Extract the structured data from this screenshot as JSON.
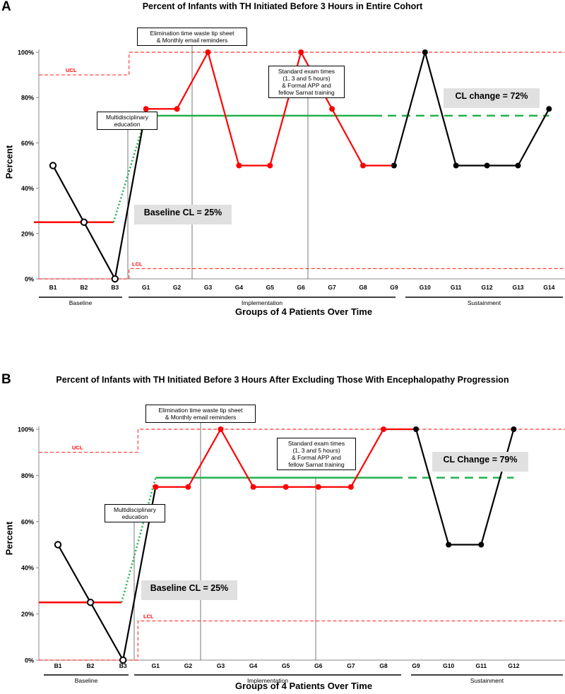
{
  "panels": [
    {
      "label": "A",
      "title": "Percent of Infants with TH Initiated Before 3 Hours in Entire Cohort",
      "ylabel": "Percent",
      "xlabel": "Groups of 4 Patients Over Time",
      "ucl_label": "UCL",
      "lcl_label": "LCL",
      "baseline_cl": "Baseline CL = 25%",
      "cl_change": "CL change = 72%",
      "annotations": {
        "elimination": "Elimination time waste tip sheet\n& Monthly email reminders",
        "multidisciplinary": "Multidisciplinary\neducation",
        "standard_exam": "Standard exam times\n(1, 3 and 5 hours)\n& Formal APP and\nfellow Sarnat training"
      },
      "phases": [
        "Baseline",
        "Implementation",
        "Sustainment"
      ]
    },
    {
      "label": "B",
      "title": "Percent of Infants with TH Initiated Before 3 Hours After Excluding Those With Encephalopathy Progression",
      "ylabel": "Percent",
      "xlabel": "Groups of 4 Patients Over Time",
      "ucl_label": "UCL",
      "lcl_label": "LCL",
      "baseline_cl": "Baseline CL = 25%",
      "cl_change": "CL Change = 79%",
      "annotations": {
        "elimination": "Elimination time waste tip sheet\n& Monthly email reminders",
        "multidisciplinary": "Multidisciplinary\neducation",
        "standard_exam": "Standard exam times\n(1, 3 and 5 hours)\n& Formal APP and\nfellow Sarnat training"
      },
      "phases": [
        "Baseline",
        "Implementation",
        "Sustainment"
      ]
    }
  ],
  "chart_data": [
    {
      "type": "line",
      "title": "Percent of Infants with TH Initiated Before 3 Hours in Entire Cohort",
      "xlabel": "Groups of 4 Patients Over Time",
      "ylabel": "Percent",
      "ylim": [
        0,
        100
      ],
      "y_ticks": [
        "0%",
        "20%",
        "40%",
        "60%",
        "80%",
        "100%"
      ],
      "categories": [
        "B1",
        "B2",
        "B3",
        "G1",
        "G2",
        "G3",
        "G4",
        "G5",
        "G6",
        "G7",
        "G8",
        "G9",
        "G10",
        "G11",
        "G12",
        "G13",
        "G14"
      ],
      "values": [
        50,
        25,
        0,
        75,
        75,
        100,
        50,
        50,
        100,
        75,
        50,
        50,
        100,
        50,
        50,
        50,
        75
      ],
      "point_colors": [
        "#000000",
        "#000000",
        "#000000",
        "#ff0000",
        "#ff0000",
        "#ff0000",
        "#ff0000",
        "#ff0000",
        "#ff0000",
        "#ff0000",
        "#ff0000",
        "#000000",
        "#000000",
        "#000000",
        "#000000",
        "#000000",
        "#000000"
      ],
      "hollow_points": [
        0,
        1,
        2
      ],
      "baseline_cl": 25,
      "new_cl": 72,
      "ucl": {
        "baseline": 90,
        "after": 100
      },
      "lcl": {
        "baseline": 0,
        "after": 4.5
      },
      "grid": false
    },
    {
      "type": "line",
      "title": "Percent of Infants with TH Initiated Before 3 Hours After Excluding Those With Encephalopathy Progression",
      "xlabel": "Groups of 4 Patients Over Time",
      "ylabel": "Percent",
      "ylim": [
        0,
        100
      ],
      "y_ticks": [
        "0%",
        "20%",
        "40%",
        "60%",
        "80%",
        "100%"
      ],
      "categories": [
        "B1",
        "B2",
        "B3",
        "G1",
        "G2",
        "G3",
        "G4",
        "G5",
        "G6",
        "G7",
        "G8",
        "G9",
        "G10",
        "G11",
        "G12"
      ],
      "values": [
        50,
        25,
        0,
        75,
        75,
        100,
        75,
        75,
        75,
        75,
        100,
        100,
        50,
        50,
        100
      ],
      "point_colors": [
        "#000000",
        "#000000",
        "#000000",
        "#ff0000",
        "#ff0000",
        "#ff0000",
        "#ff0000",
        "#ff0000",
        "#ff0000",
        "#ff0000",
        "#ff0000",
        "#000000",
        "#000000",
        "#000000",
        "#000000"
      ],
      "hollow_points": [
        0,
        1,
        2
      ],
      "baseline_cl": 25,
      "new_cl": 79,
      "ucl": {
        "baseline": 90,
        "after": 100
      },
      "lcl": {
        "baseline": 0,
        "after": 17
      },
      "grid": false
    }
  ],
  "colors": {
    "implementation": "#ff0000",
    "sustainment": "#000000",
    "centerline": "#22b14c",
    "control_limit": "#ff0000",
    "highlight_box": "#e0e0e0"
  }
}
